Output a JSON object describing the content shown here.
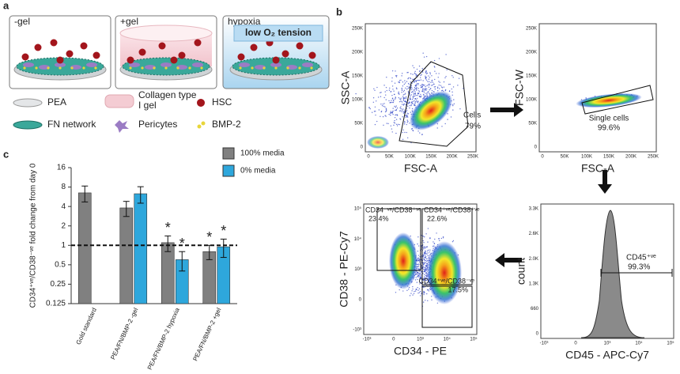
{
  "panel_a": {
    "label": "a",
    "dishes": [
      "-gel",
      "+gel",
      "hypoxia"
    ],
    "hypoxia_note": "low O₂ tension",
    "legend": [
      "PEA",
      "Collagen type I gel",
      "HSC",
      "FN network",
      "Pericytes",
      "BMP-2"
    ]
  },
  "panel_b": {
    "label": "b",
    "plots": [
      {
        "ylabel": "SSC-A",
        "xlabel": "FSC-A",
        "yticks": [
          "250K",
          "200K",
          "150K",
          "100K",
          "50K",
          "0"
        ],
        "xticks": [
          "0",
          "50K",
          "100K",
          "150K",
          "200K",
          "250K"
        ],
        "gates": [
          {
            "name": "Cells",
            "percent": "79%"
          }
        ]
      },
      {
        "ylabel": "FSC-W",
        "xlabel": "FSC-A",
        "yticks": [
          "250K",
          "200K",
          "150K",
          "100K",
          "50K",
          "0"
        ],
        "xticks": [
          "0",
          "50K",
          "100K",
          "150K",
          "200K",
          "250K"
        ],
        "gates": [
          {
            "name": "Single cells",
            "percent": "99.6%"
          }
        ]
      },
      {
        "ylabel": "CD38 - PE-Cy7",
        "xlabel": "CD34 - PE",
        "yticks": [
          "10⁵",
          "10⁴",
          "10³",
          "0",
          "-10³"
        ],
        "xticks": [
          "-10³",
          "0",
          "10³",
          "10⁴",
          "10⁵"
        ],
        "gates": [
          {
            "name": "CD34⁻ᵛᵉ/CD38⁺ᵛᵉ",
            "percent": "23.4%"
          },
          {
            "name": "CD34⁺ᵛᵉ/CD38⁺ᵛᵉ",
            "percent": "22.6%"
          },
          {
            "name": "CD34⁺ᵛᵉ/CD38⁻ᵛᵉ",
            "percent": "17.5%"
          }
        ]
      },
      {
        "ylabel": "count",
        "xlabel": "CD45 - APC-Cy7",
        "yticks": [
          "3.3K",
          "2.6K",
          "2.0K",
          "1.3K",
          "660",
          "0"
        ],
        "xticks": [
          "-10³",
          "0",
          "10³",
          "10⁴",
          "10⁵"
        ],
        "gates": [
          {
            "name": "CD45⁺ᵛᵉ",
            "percent": "99.3%"
          }
        ]
      }
    ]
  },
  "chart_data": {
    "type": "bar",
    "label": "c",
    "ylabel": "CD34⁺ᵛᵉ/CD38⁻ᵛᵉ fold change from day 0",
    "yscale": "log",
    "categories": [
      "Gold standard",
      "PEA/FN/BMP-2 -gel",
      "PEA/FN/BMP-2 hypoxia",
      "PEA/FN/BMP-2 +gel"
    ],
    "series": [
      {
        "name": "100% media",
        "color": "#808080",
        "values": [
          6.5,
          3.8,
          1.1,
          0.8
        ],
        "errors": [
          1.8,
          1.0,
          0.3,
          0.2
        ],
        "labels": [
          null,
          null,
          "*",
          "*"
        ]
      },
      {
        "name": "0% media",
        "color": "#2ea7dc",
        "values": [
          null,
          6.3,
          0.6,
          0.95
        ],
        "errors": [
          null,
          1.8,
          0.2,
          0.3
        ],
        "labels": [
          null,
          null,
          "*",
          "*"
        ]
      }
    ],
    "ylim": [
      0.125,
      16
    ],
    "yticks": [
      0.125,
      0.25,
      0.5,
      1,
      2,
      4,
      8,
      16
    ],
    "reference_line": 1,
    "legend": "top-right"
  }
}
